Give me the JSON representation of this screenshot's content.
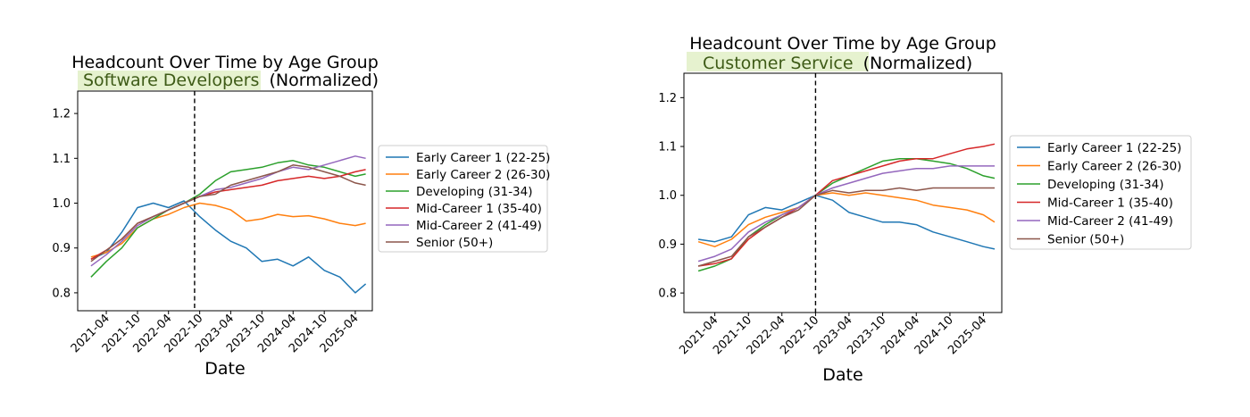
{
  "chart_data": [
    {
      "type": "line",
      "title": "Headcount Over Time by Age Group",
      "subtitle_highlight": "Software Developers",
      "subtitle_rest": "(Normalized)",
      "xlabel": "Date",
      "ylabel": "",
      "ylim": [
        0.76,
        1.25
      ],
      "xlim": [
        "2020-10-15",
        "2025-07-10"
      ],
      "yticks": [
        0.8,
        0.9,
        1.0,
        1.1,
        1.2
      ],
      "xticks": [
        "2021-04",
        "2021-10",
        "2022-04",
        "2022-10",
        "2023-04",
        "2023-10",
        "2024-04",
        "2024-10",
        "2025-04"
      ],
      "reference_line": "2022-09-01",
      "grid": false,
      "legend": "right-outside",
      "series": [
        {
          "name": "Early Career 1 (22-25)",
          "color": "#1f77b4",
          "x": [
            "2021-01",
            "2021-04",
            "2021-07",
            "2021-10",
            "2022-01",
            "2022-04",
            "2022-07",
            "2022-10",
            "2023-01",
            "2023-04",
            "2023-07",
            "2023-10",
            "2024-01",
            "2024-04",
            "2024-07",
            "2024-10",
            "2025-01",
            "2025-04",
            "2025-06"
          ],
          "values": [
            0.875,
            0.89,
            0.935,
            0.99,
            1.0,
            0.99,
            1.005,
            0.97,
            0.94,
            0.915,
            0.9,
            0.87,
            0.875,
            0.86,
            0.88,
            0.85,
            0.835,
            0.8,
            0.82
          ]
        },
        {
          "name": "Early Career 2 (26-30)",
          "color": "#ff7f0e",
          "x": [
            "2021-01",
            "2021-04",
            "2021-07",
            "2021-10",
            "2022-01",
            "2022-04",
            "2022-07",
            "2022-10",
            "2023-01",
            "2023-04",
            "2023-07",
            "2023-10",
            "2024-01",
            "2024-04",
            "2024-07",
            "2024-10",
            "2025-01",
            "2025-04",
            "2025-06"
          ],
          "values": [
            0.88,
            0.89,
            0.91,
            0.945,
            0.965,
            0.975,
            0.99,
            1.0,
            0.995,
            0.985,
            0.96,
            0.965,
            0.975,
            0.97,
            0.972,
            0.965,
            0.955,
            0.95,
            0.955
          ]
        },
        {
          "name": "Developing (31-34)",
          "color": "#2ca02c",
          "x": [
            "2021-01",
            "2021-04",
            "2021-07",
            "2021-10",
            "2022-01",
            "2022-04",
            "2022-07",
            "2022-10",
            "2023-01",
            "2023-04",
            "2023-07",
            "2023-10",
            "2024-01",
            "2024-04",
            "2024-07",
            "2024-10",
            "2025-01",
            "2025-04",
            "2025-06"
          ],
          "values": [
            0.835,
            0.87,
            0.9,
            0.945,
            0.965,
            0.985,
            1.0,
            1.02,
            1.05,
            1.07,
            1.075,
            1.08,
            1.09,
            1.095,
            1.085,
            1.08,
            1.07,
            1.06,
            1.065
          ]
        },
        {
          "name": "Mid-Career 1 (35-40)",
          "color": "#d62728",
          "x": [
            "2021-01",
            "2021-04",
            "2021-07",
            "2021-10",
            "2022-01",
            "2022-04",
            "2022-07",
            "2022-10",
            "2023-01",
            "2023-04",
            "2023-07",
            "2023-10",
            "2024-01",
            "2024-04",
            "2024-07",
            "2024-10",
            "2025-01",
            "2025-04",
            "2025-06"
          ],
          "values": [
            0.875,
            0.895,
            0.92,
            0.955,
            0.97,
            0.985,
            1.0,
            1.015,
            1.025,
            1.03,
            1.035,
            1.04,
            1.05,
            1.055,
            1.06,
            1.055,
            1.06,
            1.07,
            1.075
          ]
        },
        {
          "name": "Mid-Career 2 (41-49)",
          "color": "#9467bd",
          "x": [
            "2021-01",
            "2021-04",
            "2021-07",
            "2021-10",
            "2022-01",
            "2022-04",
            "2022-07",
            "2022-10",
            "2023-01",
            "2023-04",
            "2023-07",
            "2023-10",
            "2024-01",
            "2024-04",
            "2024-07",
            "2024-10",
            "2025-01",
            "2025-04",
            "2025-06"
          ],
          "values": [
            0.86,
            0.885,
            0.915,
            0.95,
            0.97,
            0.985,
            1.0,
            1.015,
            1.03,
            1.035,
            1.045,
            1.055,
            1.07,
            1.08,
            1.075,
            1.085,
            1.095,
            1.105,
            1.1
          ]
        },
        {
          "name": "Senior (50+)",
          "color": "#8c564b",
          "x": [
            "2021-01",
            "2021-04",
            "2021-07",
            "2021-10",
            "2022-01",
            "2022-04",
            "2022-07",
            "2022-10",
            "2023-01",
            "2023-04",
            "2023-07",
            "2023-10",
            "2024-01",
            "2024-04",
            "2024-07",
            "2024-10",
            "2025-01",
            "2025-04",
            "2025-06"
          ],
          "values": [
            0.87,
            0.895,
            0.92,
            0.955,
            0.97,
            0.985,
            1.0,
            1.015,
            1.02,
            1.04,
            1.05,
            1.06,
            1.07,
            1.085,
            1.08,
            1.07,
            1.06,
            1.045,
            1.04
          ]
        }
      ]
    },
    {
      "type": "line",
      "title": "Headcount Over Time by Age Group",
      "subtitle_highlight": "Customer Service",
      "subtitle_rest": "(Normalized)",
      "xlabel": "Date",
      "ylabel": "",
      "ylim": [
        0.76,
        1.25
      ],
      "xlim": [
        "2020-10-15",
        "2025-07-10"
      ],
      "yticks": [
        0.8,
        0.9,
        1.0,
        1.1,
        1.2
      ],
      "xticks": [
        "2021-04",
        "2021-10",
        "2022-04",
        "2022-10",
        "2023-04",
        "2023-10",
        "2024-04",
        "2024-10",
        "2025-04"
      ],
      "reference_line": "2022-10-01",
      "grid": false,
      "legend": "right-outside",
      "series": [
        {
          "name": "Early Career 1 (22-25)",
          "color": "#1f77b4",
          "x": [
            "2021-01",
            "2021-04",
            "2021-07",
            "2021-10",
            "2022-01",
            "2022-04",
            "2022-07",
            "2022-10",
            "2023-01",
            "2023-04",
            "2023-07",
            "2023-10",
            "2024-01",
            "2024-04",
            "2024-07",
            "2024-10",
            "2025-01",
            "2025-04",
            "2025-06"
          ],
          "values": [
            0.91,
            0.905,
            0.915,
            0.96,
            0.975,
            0.97,
            0.985,
            1.0,
            0.99,
            0.965,
            0.955,
            0.945,
            0.945,
            0.94,
            0.925,
            0.915,
            0.905,
            0.895,
            0.89
          ]
        },
        {
          "name": "Early Career 2 (26-30)",
          "color": "#ff7f0e",
          "x": [
            "2021-01",
            "2021-04",
            "2021-07",
            "2021-10",
            "2022-01",
            "2022-04",
            "2022-07",
            "2022-10",
            "2023-01",
            "2023-04",
            "2023-07",
            "2023-10",
            "2024-01",
            "2024-04",
            "2024-07",
            "2024-10",
            "2025-01",
            "2025-04",
            "2025-06"
          ],
          "values": [
            0.905,
            0.895,
            0.91,
            0.94,
            0.955,
            0.965,
            0.975,
            1.0,
            1.005,
            1.0,
            1.005,
            1.0,
            0.995,
            0.99,
            0.98,
            0.975,
            0.97,
            0.96,
            0.945
          ]
        },
        {
          "name": "Developing (31-34)",
          "color": "#2ca02c",
          "x": [
            "2021-01",
            "2021-04",
            "2021-07",
            "2021-10",
            "2022-01",
            "2022-04",
            "2022-07",
            "2022-10",
            "2023-01",
            "2023-04",
            "2023-07",
            "2023-10",
            "2024-01",
            "2024-04",
            "2024-07",
            "2024-10",
            "2025-01",
            "2025-04",
            "2025-06"
          ],
          "values": [
            0.845,
            0.855,
            0.87,
            0.915,
            0.94,
            0.96,
            0.975,
            1.0,
            1.025,
            1.04,
            1.055,
            1.07,
            1.075,
            1.075,
            1.07,
            1.065,
            1.055,
            1.04,
            1.035
          ]
        },
        {
          "name": "Mid-Career 1 (35-40)",
          "color": "#d62728",
          "x": [
            "2021-01",
            "2021-04",
            "2021-07",
            "2021-10",
            "2022-01",
            "2022-04",
            "2022-07",
            "2022-10",
            "2023-01",
            "2023-04",
            "2023-07",
            "2023-10",
            "2024-01",
            "2024-04",
            "2024-07",
            "2024-10",
            "2025-01",
            "2025-04",
            "2025-06"
          ],
          "values": [
            0.855,
            0.86,
            0.87,
            0.91,
            0.935,
            0.955,
            0.975,
            1.0,
            1.03,
            1.04,
            1.05,
            1.06,
            1.07,
            1.075,
            1.075,
            1.085,
            1.095,
            1.1,
            1.105
          ]
        },
        {
          "name": "Mid-Career 2 (41-49)",
          "color": "#9467bd",
          "x": [
            "2021-01",
            "2021-04",
            "2021-07",
            "2021-10",
            "2022-01",
            "2022-04",
            "2022-07",
            "2022-10",
            "2023-01",
            "2023-04",
            "2023-07",
            "2023-10",
            "2024-01",
            "2024-04",
            "2024-07",
            "2024-10",
            "2025-01",
            "2025-04",
            "2025-06"
          ],
          "values": [
            0.865,
            0.875,
            0.89,
            0.925,
            0.945,
            0.96,
            0.975,
            1.0,
            1.015,
            1.025,
            1.035,
            1.045,
            1.05,
            1.055,
            1.055,
            1.06,
            1.06,
            1.06,
            1.06
          ]
        },
        {
          "name": "Senior (50+)",
          "color": "#8c564b",
          "x": [
            "2021-01",
            "2021-04",
            "2021-07",
            "2021-10",
            "2022-01",
            "2022-04",
            "2022-07",
            "2022-10",
            "2023-01",
            "2023-04",
            "2023-07",
            "2023-10",
            "2024-01",
            "2024-04",
            "2024-07",
            "2024-10",
            "2025-01",
            "2025-04",
            "2025-06"
          ],
          "values": [
            0.855,
            0.865,
            0.875,
            0.915,
            0.935,
            0.955,
            0.97,
            1.0,
            1.01,
            1.005,
            1.01,
            1.01,
            1.015,
            1.01,
            1.015,
            1.015,
            1.015,
            1.015,
            1.015
          ]
        }
      ]
    }
  ]
}
